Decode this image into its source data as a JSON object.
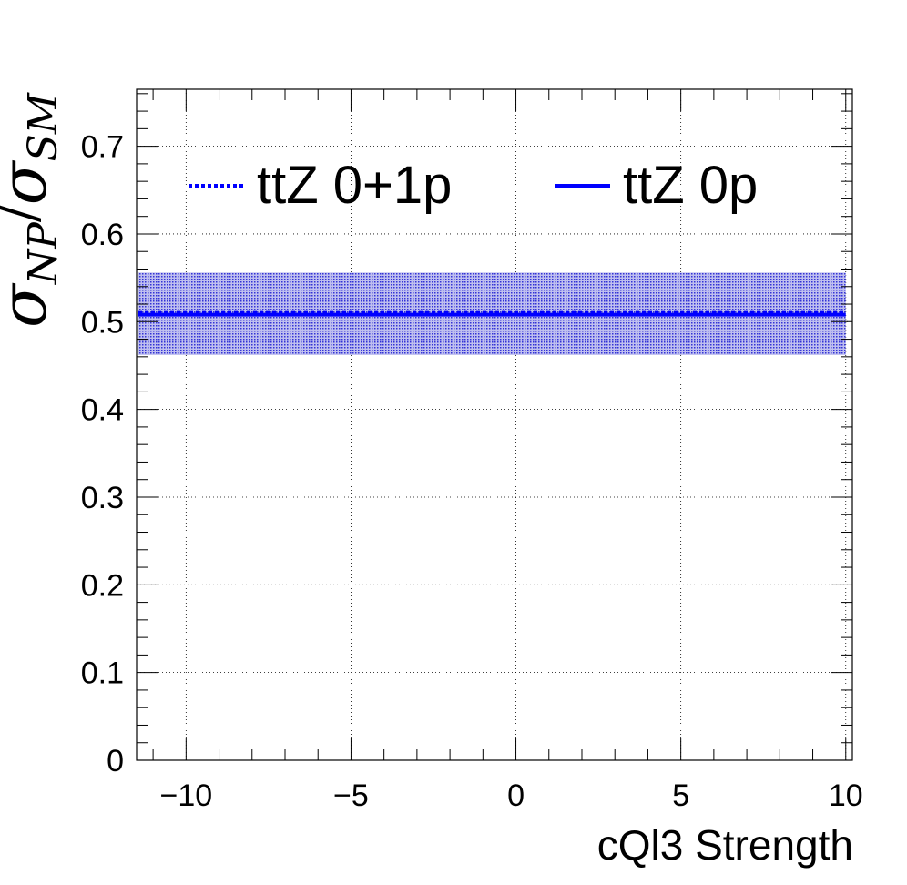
{
  "chart_data": {
    "type": "line",
    "xlabel": "cQl3 Strength",
    "ylabel": {
      "sigma": "σ",
      "num_sub": "NP",
      "slash": "/",
      "den_sub": "SM"
    },
    "xlim": [
      -11.5,
      10.2
    ],
    "ylim": [
      0,
      0.765
    ],
    "x_ticks": [
      -10,
      -5,
      0,
      5,
      10
    ],
    "x_tick_labels": [
      "−10",
      "−5",
      "0",
      "5",
      "10"
    ],
    "y_ticks": [
      0,
      0.1,
      0.2,
      0.3,
      0.4,
      0.5,
      0.6,
      0.7
    ],
    "y_tick_labels": [
      "0",
      "0.1",
      "0.2",
      "0.3",
      "0.4",
      "0.5",
      "0.6",
      "0.7"
    ],
    "grid": true,
    "legend_placement": "top",
    "series": [
      {
        "name": "ttZ 0+1p",
        "style": "dotted",
        "color": "#0000ff",
        "x": [
          -11.5,
          10
        ],
        "values": [
          0.51,
          0.51
        ],
        "band": {
          "low": 0.462,
          "high": 0.556,
          "color": "#7f7fd9"
        }
      },
      {
        "name": "ttZ 0p",
        "style": "solid",
        "color": "#0000ff",
        "x": [
          -11.5,
          10
        ],
        "values": [
          0.508,
          0.508
        ]
      }
    ]
  }
}
